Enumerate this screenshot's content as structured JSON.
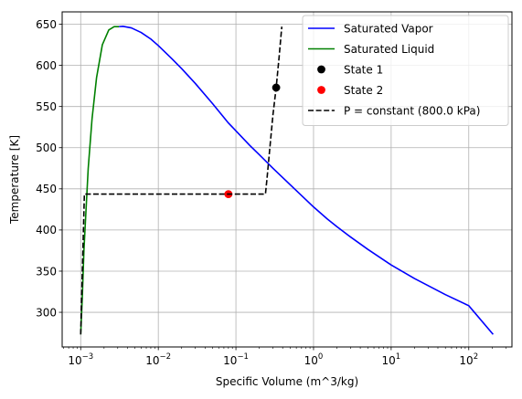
{
  "chart_data": {
    "type": "line",
    "title": "",
    "xlabel": "Specific Volume (m^3/kg)",
    "ylabel": "Temperature [K]",
    "xscale": "log",
    "xlim": [
      0.000577,
      360
    ],
    "ylim": [
      257.9,
      665
    ],
    "grid": true,
    "legend_position": "top-right",
    "x_ticks": [
      {
        "value": 0.001,
        "base": "10",
        "exp": "−3"
      },
      {
        "value": 0.01,
        "base": "10",
        "exp": "−2"
      },
      {
        "value": 0.1,
        "base": "10",
        "exp": "−1"
      },
      {
        "value": 1,
        "base": "10",
        "exp": "0"
      },
      {
        "value": 10,
        "base": "10",
        "exp": "1"
      },
      {
        "value": 100,
        "base": "10",
        "exp": "2"
      }
    ],
    "y_ticks": [
      300,
      350,
      400,
      450,
      500,
      550,
      600,
      650
    ],
    "series": [
      {
        "name": "Saturated Vapor",
        "kind": "line",
        "color": "#0000ff",
        "dash": "solid",
        "points": [
          [
            0.00311,
            647.1
          ],
          [
            0.0035,
            647.5
          ],
          [
            0.0045,
            645.5
          ],
          [
            0.006,
            640.0
          ],
          [
            0.008,
            632.0
          ],
          [
            0.01,
            624.0
          ],
          [
            0.015,
            608.0
          ],
          [
            0.02,
            596.0
          ],
          [
            0.03,
            578.0
          ],
          [
            0.05,
            553.5
          ],
          [
            0.08,
            530.0
          ],
          [
            0.1,
            520.5
          ],
          [
            0.15,
            503.0
          ],
          [
            0.2,
            491.5
          ],
          [
            0.3,
            475.0
          ],
          [
            0.5,
            455.0
          ],
          [
            1.0,
            428.0
          ],
          [
            1.5,
            413.5
          ],
          [
            2.0,
            404.0
          ],
          [
            3.0,
            391.5
          ],
          [
            5.0,
            376.5
          ],
          [
            10.0,
            357.5
          ],
          [
            20.0,
            341.0
          ],
          [
            50.0,
            321.5
          ],
          [
            100.0,
            308.0
          ],
          [
            206.0,
            273.16
          ]
        ]
      },
      {
        "name": "Saturated Liquid",
        "kind": "line",
        "color": "#008000",
        "dash": "solid",
        "points": [
          [
            0.001,
            273.16
          ],
          [
            0.00105,
            320.0
          ],
          [
            0.0011,
            375.0
          ],
          [
            0.00115,
            410.0
          ],
          [
            0.00125,
            475.0
          ],
          [
            0.0014,
            535.0
          ],
          [
            0.0016,
            585.0
          ],
          [
            0.0019,
            625.0
          ],
          [
            0.0023,
            643.0
          ],
          [
            0.0027,
            647.0
          ],
          [
            0.00311,
            647.1
          ]
        ]
      },
      {
        "name": "State 1",
        "kind": "marker",
        "color": "#000000",
        "points": [
          [
            0.33,
            573.0
          ]
        ]
      },
      {
        "name": "State 2",
        "kind": "marker",
        "color": "#ff0000",
        "points": [
          [
            0.08,
            443.6
          ]
        ]
      },
      {
        "name": "P = constant (800.0 kPa)",
        "kind": "line",
        "color": "#000000",
        "dash": "dashed",
        "points": [
          [
            0.001,
            273.16
          ],
          [
            0.001115,
            443.6
          ],
          [
            0.24,
            443.6
          ],
          [
            0.25,
            460.0
          ],
          [
            0.28,
            510.0
          ],
          [
            0.3,
            540.0
          ],
          [
            0.33,
            573.0
          ],
          [
            0.36,
            610.0
          ],
          [
            0.39,
            647.1
          ]
        ]
      }
    ]
  }
}
